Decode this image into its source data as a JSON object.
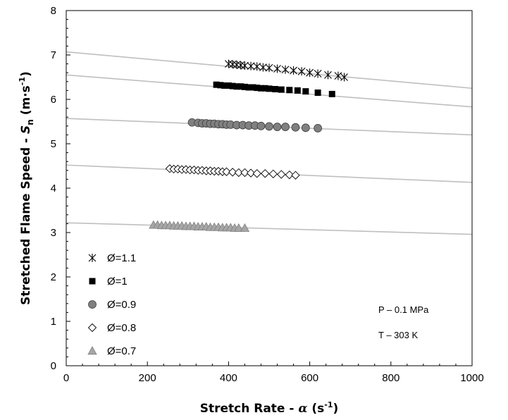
{
  "chart_data": {
    "type": "scatter",
    "xlabel": {
      "main": "Stretch Rate - ",
      "symbol": "α",
      "unit_open": " (s",
      "unit_sup": "-1",
      "unit_close": ")"
    },
    "ylabel": {
      "main": "Stretched Flame Speed - ",
      "symbol": "S",
      "sub": "n",
      "unit_open": " (m·s",
      "unit_sup": "-1",
      "unit_close": ")"
    },
    "xlim": [
      0,
      1000
    ],
    "ylim": [
      0,
      8
    ],
    "x_ticks": [
      0,
      200,
      400,
      600,
      800,
      1000
    ],
    "y_ticks": [
      0,
      1,
      2,
      3,
      4,
      5,
      6,
      7,
      8
    ],
    "x_tick_labels": [
      "0",
      "200",
      "400",
      "600",
      "800",
      "1000"
    ],
    "y_tick_labels": [
      "0",
      "1",
      "2",
      "3",
      "4",
      "5",
      "6",
      "7",
      "8"
    ],
    "grid": false,
    "legend_position": "bottom-left",
    "annotations": [
      "P – 0.1 MPa",
      "T – 303 K"
    ],
    "fit_line_color": "#bfbfbf",
    "series": [
      {
        "name": "Ø=1.1",
        "marker": "asterisk",
        "color": "#000000",
        "x": [
          400,
          410,
          420,
          430,
          440,
          455,
          470,
          485,
          500,
          520,
          540,
          560,
          580,
          600,
          620,
          645,
          670,
          685
        ],
        "y": [
          6.8,
          6.79,
          6.78,
          6.77,
          6.76,
          6.75,
          6.74,
          6.72,
          6.71,
          6.69,
          6.67,
          6.65,
          6.63,
          6.6,
          6.58,
          6.55,
          6.53,
          6.5
        ],
        "fit": [
          [
            0,
            7.07
          ],
          [
            1000,
            6.25
          ]
        ]
      },
      {
        "name": "Ø=1",
        "marker": "square",
        "color": "#000000",
        "x": [
          370,
          380,
          390,
          400,
          410,
          420,
          430,
          440,
          450,
          460,
          470,
          480,
          490,
          500,
          515,
          530,
          550,
          570,
          590,
          620,
          655
        ],
        "y": [
          6.33,
          6.32,
          6.31,
          6.31,
          6.3,
          6.29,
          6.29,
          6.28,
          6.27,
          6.27,
          6.26,
          6.25,
          6.25,
          6.24,
          6.23,
          6.22,
          6.21,
          6.2,
          6.18,
          6.15,
          6.12
        ],
        "fit": [
          [
            0,
            6.55
          ],
          [
            1000,
            5.83
          ]
        ]
      },
      {
        "name": "Ø=0.9",
        "marker": "circle",
        "color": "#808080",
        "x": [
          310,
          325,
          335,
          345,
          355,
          365,
          375,
          385,
          395,
          405,
          420,
          435,
          450,
          465,
          480,
          500,
          520,
          540,
          565,
          590,
          620
        ],
        "y": [
          5.48,
          5.47,
          5.46,
          5.46,
          5.45,
          5.45,
          5.44,
          5.44,
          5.43,
          5.43,
          5.42,
          5.42,
          5.41,
          5.41,
          5.4,
          5.39,
          5.38,
          5.38,
          5.37,
          5.36,
          5.35
        ],
        "fit": [
          [
            0,
            5.57
          ],
          [
            1000,
            5.2
          ]
        ]
      },
      {
        "name": "Ø=0.8",
        "marker": "diamond",
        "color": "#ffffff",
        "x": [
          255,
          265,
          275,
          285,
          295,
          305,
          315,
          325,
          335,
          345,
          355,
          365,
          375,
          385,
          395,
          410,
          425,
          440,
          455,
          470,
          490,
          510,
          530,
          550,
          565
        ],
        "y": [
          4.44,
          4.43,
          4.43,
          4.42,
          4.42,
          4.41,
          4.41,
          4.4,
          4.4,
          4.39,
          4.39,
          4.38,
          4.38,
          4.37,
          4.37,
          4.36,
          4.35,
          4.35,
          4.34,
          4.33,
          4.33,
          4.32,
          4.31,
          4.3,
          4.29
        ],
        "fit": [
          [
            0,
            4.52
          ],
          [
            1000,
            4.13
          ]
        ]
      },
      {
        "name": "Ø=0.7",
        "marker": "triangle",
        "color": "#a6a6a6",
        "x": [
          215,
          225,
          235,
          245,
          255,
          265,
          275,
          285,
          295,
          305,
          315,
          325,
          335,
          345,
          355,
          365,
          375,
          385,
          395,
          405,
          415,
          425,
          440
        ],
        "y": [
          3.17,
          3.17,
          3.16,
          3.16,
          3.16,
          3.15,
          3.15,
          3.15,
          3.14,
          3.14,
          3.14,
          3.13,
          3.13,
          3.13,
          3.12,
          3.12,
          3.12,
          3.11,
          3.11,
          3.11,
          3.1,
          3.1,
          3.1
        ],
        "fit": [
          [
            0,
            3.22
          ],
          [
            1000,
            2.96
          ]
        ]
      }
    ]
  }
}
